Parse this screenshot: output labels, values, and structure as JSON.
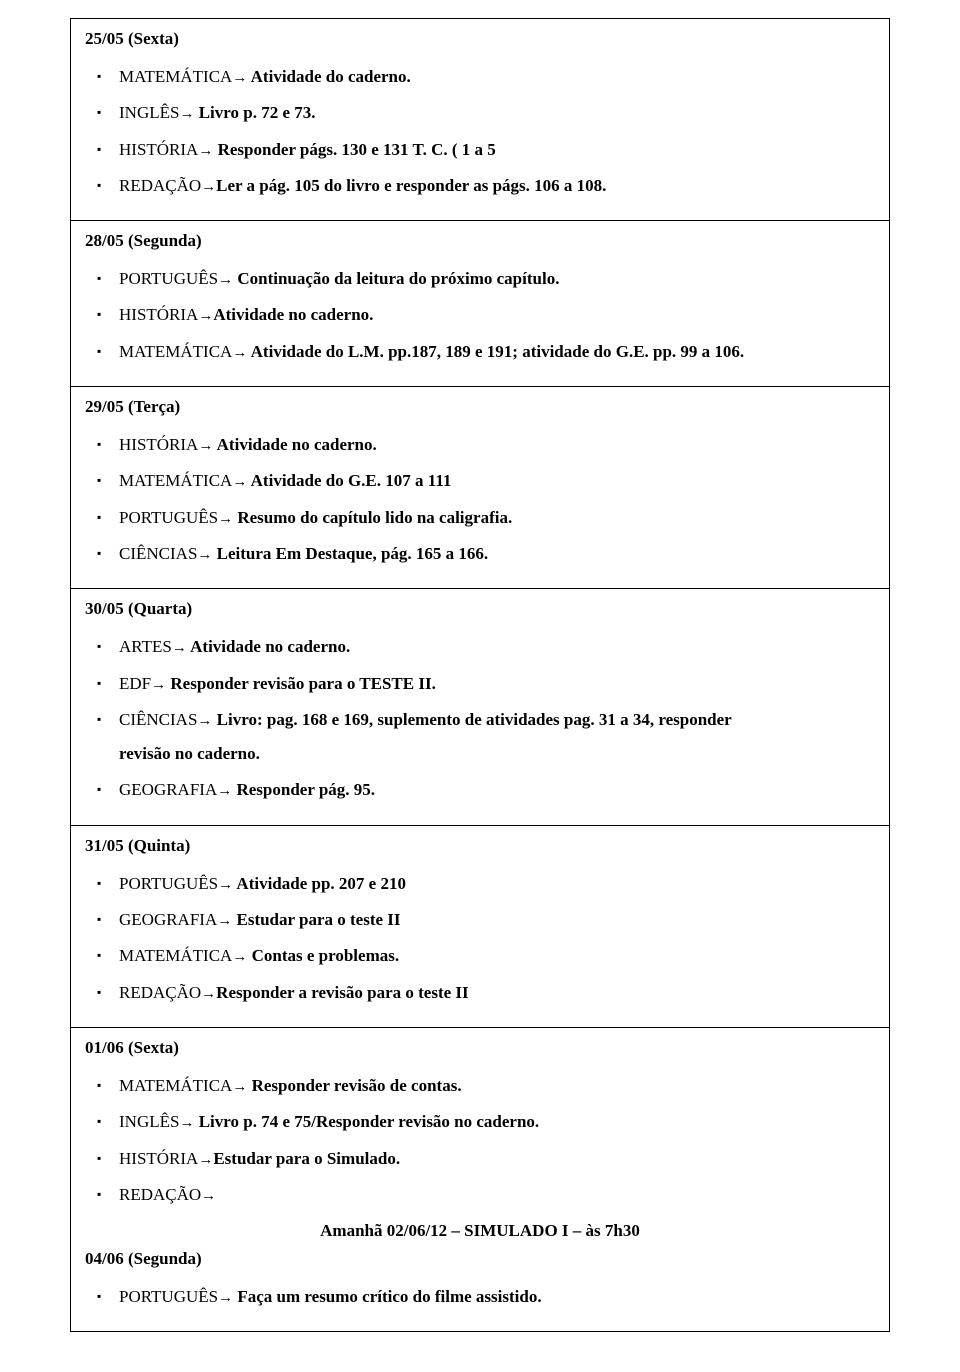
{
  "sections": [
    {
      "date": "25/05 (Sexta)",
      "items": [
        {
          "subject": "MATEMÁTICA",
          "arrow": "→",
          "desc": " Atividade do caderno."
        },
        {
          "subject": "INGLÊS",
          "arrow": "→",
          "desc": " Livro p. 72 e 73."
        },
        {
          "subject": "HISTÓRIA",
          "arrow": "→",
          "desc": " Responder págs. 130 e 131 T. C. ( 1 a 5"
        },
        {
          "subject": "REDAÇÃO",
          "arrow": "→",
          "desc": "Ler a pág. 105 do livro e responder as págs. 106 a 108."
        }
      ]
    },
    {
      "date": "28/05 (Segunda)",
      "items": [
        {
          "subject": "PORTUGUÊS",
          "arrow": "→",
          "desc": " Continuação da leitura do próximo capítulo."
        },
        {
          "subject": "HISTÓRIA",
          "arrow": "→",
          "desc": "Atividade no caderno."
        },
        {
          "subject": "MATEMÁTICA",
          "arrow": "→",
          "desc": " Atividade do L.M. pp.187, 189 e 191; atividade do G.E. pp. 99 a 106."
        }
      ]
    },
    {
      "date": "29/05 (Terça)",
      "items": [
        {
          "subject": "HISTÓRIA",
          "arrow": "→",
          "desc": " Atividade no caderno."
        },
        {
          "subject": "MATEMÁTICA",
          "arrow": "→",
          "desc": " Atividade do G.E. 107 a 111"
        },
        {
          "subject": "PORTUGUÊS",
          "arrow": "→",
          "desc": " Resumo do capítulo lido na caligrafia."
        },
        {
          "subject": "CIÊNCIAS",
          "arrow": "→",
          "desc": " Leitura Em Destaque, pág. 165 a 166."
        }
      ]
    },
    {
      "date": "30/05 (Quarta)",
      "items": [
        {
          "subject": "ARTES",
          "arrow": "→",
          "desc": " Atividade no caderno."
        },
        {
          "subject": "EDF",
          "arrow": "→",
          "desc": " Responder revisão para o TESTE II."
        },
        {
          "subject": "CIÊNCIAS",
          "arrow": "→",
          "desc": " Livro: pag. 168 e 169, suplemento de atividades pag. 31 a 34, responder",
          "cont": "revisão no caderno."
        },
        {
          "subject": "GEOGRAFIA",
          "arrow": "→",
          "desc": " Responder pág. 95."
        }
      ]
    },
    {
      "date": "31/05 (Quinta)",
      "items": [
        {
          "subject": "PORTUGUÊS",
          "arrow": "→",
          "desc": " Atividade pp. 207 e 210"
        },
        {
          "subject": "GEOGRAFIA",
          "arrow": "→",
          "desc": " Estudar para o teste II"
        },
        {
          "subject": "MATEMÁTICA",
          "arrow": "→",
          "desc": " Contas e problemas."
        },
        {
          "subject": "REDAÇÃO",
          "arrow": "→",
          "desc": "Responder a revisão para o teste II"
        }
      ]
    },
    {
      "date": "01/06 (Sexta)",
      "items": [
        {
          "subject": "MATEMÁTICA",
          "arrow": "→",
          "desc": " Responder revisão de contas."
        },
        {
          "subject": "INGLÊS",
          "arrow": "→",
          "desc": " Livro p. 74 e 75/Responder revisão no caderno."
        },
        {
          "subject": "HISTÓRIA",
          "arrow": "→",
          "desc": "Estudar para o Simulado."
        },
        {
          "subject": "REDAÇÃO",
          "arrow": "→",
          "desc": ""
        }
      ],
      "centerNote": "Amanhã 02/06/12 – SIMULADO I – às 7h30",
      "nextHead": "04/06 (Segunda)",
      "nextItems": [
        {
          "subject": "PORTUGUÊS",
          "arrow": "→",
          "desc": " Faça um resumo crítico do filme assistido."
        }
      ]
    }
  ]
}
